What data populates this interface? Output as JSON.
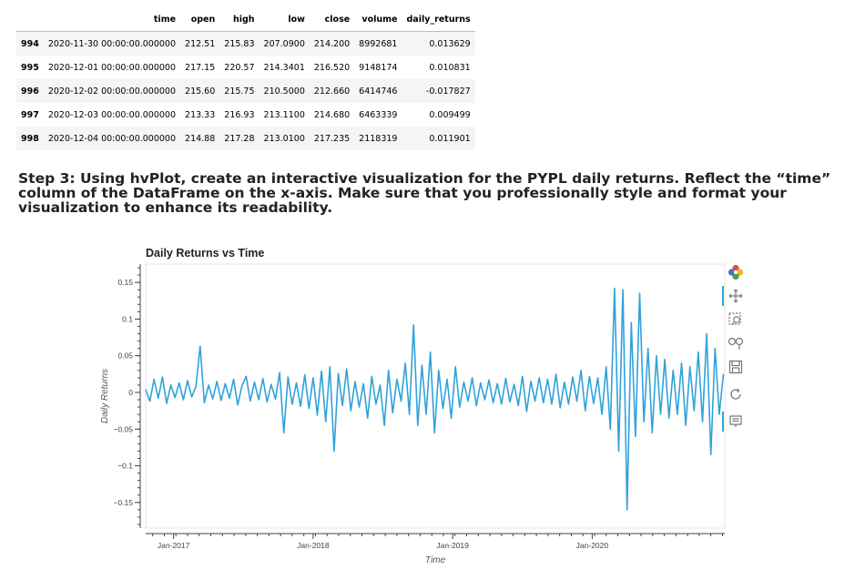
{
  "table": {
    "columns": [
      "time",
      "open",
      "high",
      "low",
      "close",
      "volume",
      "daily_returns"
    ],
    "rows": [
      {
        "index": "994",
        "time": "2020-11-30 00:00:00.000000",
        "open": "212.51",
        "high": "215.83",
        "low": "207.0900",
        "close": "214.200",
        "volume": "8992681",
        "daily_returns": "0.013629"
      },
      {
        "index": "995",
        "time": "2020-12-01 00:00:00.000000",
        "open": "217.15",
        "high": "220.57",
        "low": "214.3401",
        "close": "216.520",
        "volume": "9148174",
        "daily_returns": "0.010831"
      },
      {
        "index": "996",
        "time": "2020-12-02 00:00:00.000000",
        "open": "215.60",
        "high": "215.75",
        "low": "210.5000",
        "close": "212.660",
        "volume": "6414746",
        "daily_returns": "-0.017827"
      },
      {
        "index": "997",
        "time": "2020-12-03 00:00:00.000000",
        "open": "213.33",
        "high": "216.93",
        "low": "213.1100",
        "close": "214.680",
        "volume": "6463339",
        "daily_returns": "0.009499"
      },
      {
        "index": "998",
        "time": "2020-12-04 00:00:00.000000",
        "open": "214.88",
        "high": "217.28",
        "low": "213.0100",
        "close": "217.235",
        "volume": "2118319",
        "daily_returns": "0.011901"
      }
    ]
  },
  "step_text": "Step 3: Using hvPlot, create an interactive visualization for the PYPL daily returns. Reflect the “time” column of the DataFrame on the x-axis. Make sure that you professionally style and format your visualization to enhance its readability.",
  "chart_data": {
    "type": "line",
    "title": "Daily Returns vs Time",
    "xlabel": "Time",
    "ylabel": "Daily Returns",
    "xlim": [
      2016.8,
      2020.95
    ],
    "ylim": [
      -0.185,
      0.175
    ],
    "x_ticks": [
      {
        "value": 2017.0,
        "label": "Jan-2017"
      },
      {
        "value": 2018.0,
        "label": "Jan-2018"
      },
      {
        "value": 2019.0,
        "label": "Jan-2019"
      },
      {
        "value": 2020.0,
        "label": "Jan-2020"
      }
    ],
    "y_ticks": [
      {
        "value": 0.15,
        "label": "0.15"
      },
      {
        "value": 0.1,
        "label": "0.1"
      },
      {
        "value": 0.05,
        "label": "0.05"
      },
      {
        "value": 0,
        "label": "0"
      },
      {
        "value": -0.05,
        "label": "−0.05"
      },
      {
        "value": -0.1,
        "label": "−0.1"
      },
      {
        "value": -0.15,
        "label": "−0.15"
      }
    ],
    "line_color": "#30a2da",
    "series": [
      {
        "name": "daily_returns",
        "x": [
          2016.8,
          2016.83,
          2016.86,
          2016.89,
          2016.92,
          2016.95,
          2016.98,
          2017.01,
          2017.04,
          2017.07,
          2017.1,
          2017.13,
          2017.16,
          2017.19,
          2017.22,
          2017.25,
          2017.28,
          2017.31,
          2017.34,
          2017.37,
          2017.4,
          2017.43,
          2017.46,
          2017.49,
          2017.52,
          2017.55,
          2017.58,
          2017.61,
          2017.64,
          2017.67,
          2017.7,
          2017.73,
          2017.76,
          2017.79,
          2017.82,
          2017.85,
          2017.88,
          2017.91,
          2017.94,
          2017.97,
          2018.0,
          2018.03,
          2018.06,
          2018.09,
          2018.12,
          2018.15,
          2018.18,
          2018.21,
          2018.24,
          2018.27,
          2018.3,
          2018.33,
          2018.36,
          2018.39,
          2018.42,
          2018.45,
          2018.48,
          2018.51,
          2018.54,
          2018.57,
          2018.6,
          2018.63,
          2018.66,
          2018.69,
          2018.72,
          2018.75,
          2018.78,
          2018.81,
          2018.84,
          2018.87,
          2018.9,
          2018.93,
          2018.96,
          2018.99,
          2019.02,
          2019.05,
          2019.08,
          2019.11,
          2019.14,
          2019.17,
          2019.2,
          2019.23,
          2019.26,
          2019.29,
          2019.32,
          2019.35,
          2019.38,
          2019.41,
          2019.44,
          2019.47,
          2019.5,
          2019.53,
          2019.56,
          2019.59,
          2019.62,
          2019.65,
          2019.68,
          2019.71,
          2019.74,
          2019.77,
          2019.8,
          2019.83,
          2019.86,
          2019.89,
          2019.92,
          2019.95,
          2019.98,
          2020.01,
          2020.04,
          2020.07,
          2020.1,
          2020.13,
          2020.16,
          2020.19,
          2020.22,
          2020.25,
          2020.28,
          2020.31,
          2020.34,
          2020.37,
          2020.4,
          2020.43,
          2020.46,
          2020.49,
          2020.52,
          2020.55,
          2020.58,
          2020.61,
          2020.64,
          2020.67,
          2020.7,
          2020.73,
          2020.76,
          2020.79,
          2020.82,
          2020.85,
          2020.88,
          2020.91,
          2020.94
        ],
        "y": [
          0.004,
          -0.012,
          0.018,
          -0.008,
          0.021,
          -0.015,
          0.01,
          -0.007,
          0.013,
          -0.01,
          0.016,
          -0.006,
          0.008,
          0.063,
          -0.014,
          0.01,
          -0.009,
          0.015,
          -0.011,
          0.012,
          -0.008,
          0.018,
          -0.017,
          0.009,
          0.022,
          -0.012,
          0.014,
          -0.01,
          0.019,
          -0.013,
          0.011,
          -0.009,
          0.027,
          -0.055,
          0.021,
          -0.016,
          0.013,
          -0.019,
          0.024,
          -0.022,
          0.02,
          -0.031,
          0.029,
          -0.04,
          0.035,
          -0.08,
          0.026,
          -0.018,
          0.032,
          -0.025,
          0.015,
          -0.02,
          0.012,
          -0.035,
          0.022,
          -0.016,
          0.01,
          -0.045,
          0.03,
          -0.028,
          0.018,
          -0.012,
          0.04,
          -0.03,
          0.092,
          -0.045,
          0.037,
          -0.03,
          0.055,
          -0.055,
          0.03,
          -0.022,
          0.018,
          -0.035,
          0.035,
          -0.02,
          0.014,
          -0.012,
          0.02,
          -0.018,
          0.013,
          -0.01,
          0.017,
          -0.014,
          0.012,
          -0.016,
          0.019,
          -0.013,
          0.011,
          -0.018,
          0.022,
          -0.026,
          0.015,
          -0.012,
          0.02,
          -0.014,
          0.018,
          -0.016,
          0.025,
          -0.021,
          0.014,
          -0.016,
          0.021,
          -0.012,
          0.03,
          -0.025,
          0.022,
          -0.015,
          0.02,
          -0.03,
          0.035,
          -0.05,
          0.142,
          -0.08,
          0.14,
          -0.16,
          0.095,
          -0.06,
          0.135,
          -0.04,
          0.06,
          -0.055,
          0.05,
          -0.03,
          0.045,
          -0.035,
          0.03,
          -0.03,
          0.04,
          -0.045,
          0.035,
          -0.025,
          0.055,
          -0.04,
          0.08,
          -0.085,
          0.06,
          -0.03,
          0.025
        ]
      }
    ]
  }
}
